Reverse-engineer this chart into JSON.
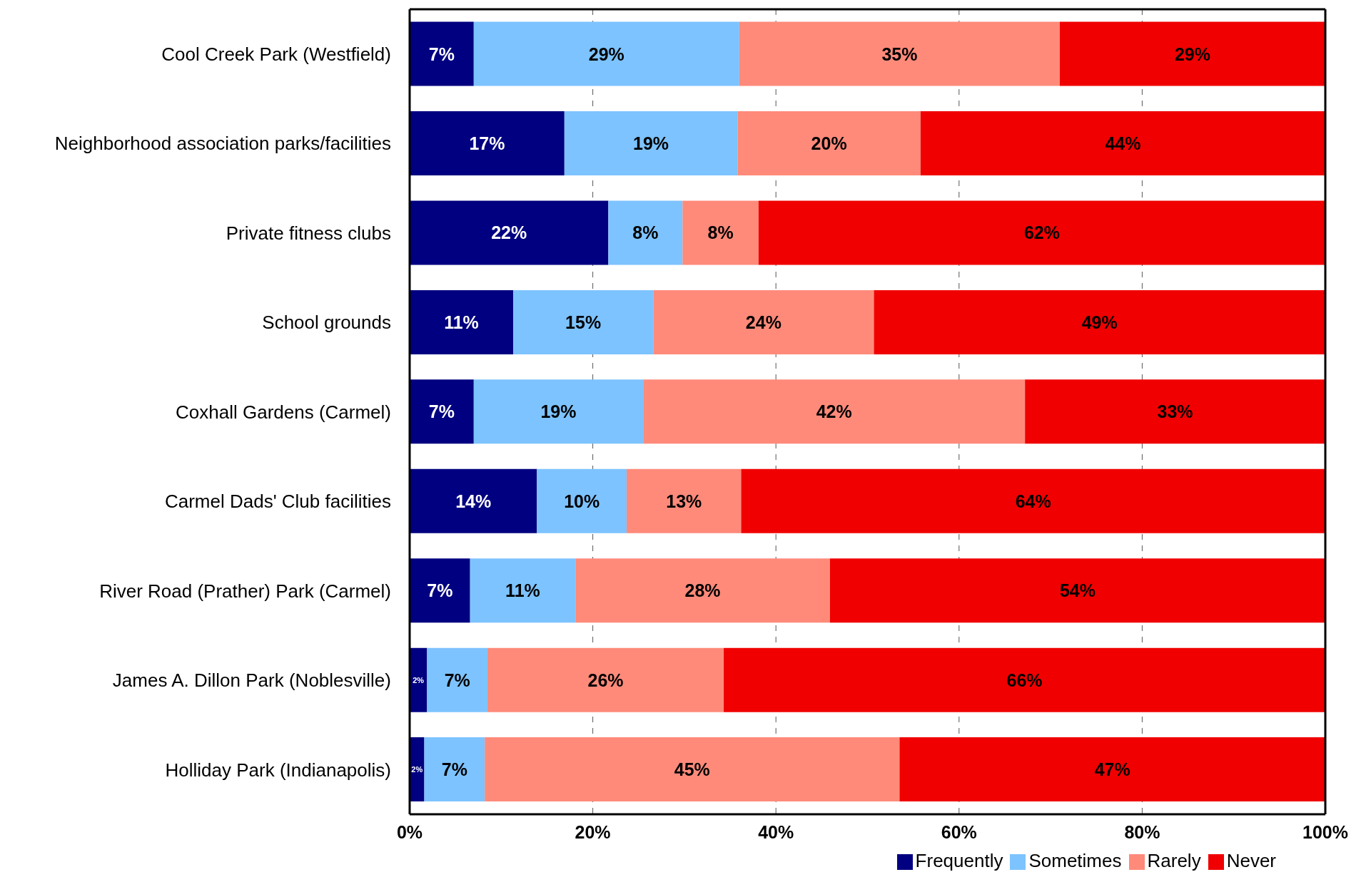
{
  "chart_data": {
    "type": "bar",
    "orientation": "horizontal",
    "stacked": true,
    "categories": [
      "Cool Creek Park (Westfield)",
      "Neighborhood association parks/facilities",
      "Private fitness clubs",
      "School grounds",
      "Coxhall Gardens (Carmel)",
      "Carmel Dads' Club facilities",
      "River Road (Prather) Park (Carmel)",
      "James A. Dillon Park (Noblesville)",
      "Holliday Park (Indianapolis)"
    ],
    "series": [
      {
        "name": "Frequently",
        "color": "#000080",
        "values": [
          7.0,
          16.9,
          21.7,
          11.3,
          7.0,
          13.9,
          6.6,
          1.9,
          1.6
        ],
        "value_labels": [
          "7%",
          "17%",
          "22%",
          "11%",
          "7%",
          "14%",
          "7%",
          "2%",
          "2%"
        ]
      },
      {
        "name": "Sometimes",
        "color": "#7dc3ff",
        "values": [
          29.0,
          18.9,
          8.1,
          15.3,
          18.5,
          9.8,
          11.5,
          6.6,
          6.6
        ],
        "value_labels": [
          "29%",
          "19%",
          "8%",
          "15%",
          "19%",
          "10%",
          "11%",
          "7%",
          "7%"
        ]
      },
      {
        "name": "Rarely",
        "color": "#ff8a7a",
        "values": [
          35.0,
          20.0,
          8.3,
          24.1,
          41.7,
          12.5,
          27.8,
          25.8,
          45.3
        ],
        "value_labels": [
          "35%",
          "20%",
          "8%",
          "24%",
          "42%",
          "13%",
          "28%",
          "26%",
          "45%"
        ]
      },
      {
        "name": "Never",
        "color": "#f00000",
        "values": [
          29.0,
          44.2,
          61.9,
          49.3,
          32.8,
          63.8,
          54.1,
          65.7,
          46.5
        ],
        "value_labels": [
          "29%",
          "44%",
          "62%",
          "49%",
          "33%",
          "64%",
          "54%",
          "66%",
          "47%"
        ]
      }
    ],
    "xlim": [
      0,
      100
    ],
    "xticks": [
      {
        "value": 0,
        "label": "0%"
      },
      {
        "value": 20,
        "label": "20%"
      },
      {
        "value": 40,
        "label": "40%"
      },
      {
        "value": 60,
        "label": "60%"
      },
      {
        "value": 80,
        "label": "80%"
      },
      {
        "value": 100,
        "label": "100%"
      }
    ],
    "grid": "x",
    "legend": "bottom right"
  }
}
